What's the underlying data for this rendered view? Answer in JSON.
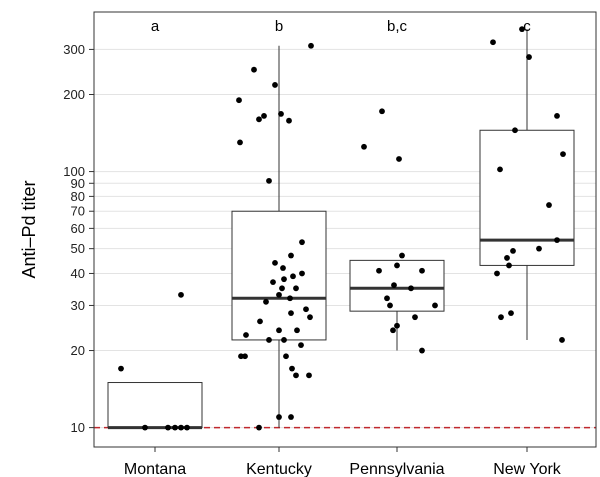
{
  "chart_data": {
    "type": "boxplot",
    "ylabel": "Anti–Pd titer",
    "yscale": "log",
    "ylim": [
      8.4,
      420
    ],
    "yticks": [
      10,
      20,
      30,
      40,
      50,
      60,
      70,
      80,
      90,
      100,
      200,
      300
    ],
    "ytick_labels": [
      "10",
      "20",
      "30",
      "40",
      "50",
      "60",
      "70",
      "80",
      "90",
      "100",
      "200",
      "300"
    ],
    "grid": true,
    "reference_line": {
      "y": 10,
      "color": "#c0272d",
      "style": "dashed"
    },
    "categories": [
      "Montana",
      "Kentucky",
      "Pennsylvania",
      "New York"
    ],
    "significance_labels": [
      "a",
      "b",
      "b,c",
      "c"
    ],
    "boxes": [
      {
        "category": "Montana",
        "whisker_low": 10,
        "q1": 10,
        "median": 10,
        "q3": 15,
        "whisker_high": 15,
        "points": [
          [
            -0.34,
            17
          ],
          [
            0.26,
            33
          ],
          [
            -0.1,
            10
          ],
          [
            0.13,
            10
          ],
          [
            0.2,
            10
          ],
          [
            0.32,
            10
          ],
          [
            0.26,
            10
          ]
        ]
      },
      {
        "category": "Kentucky",
        "whisker_low": 10,
        "q1": 22,
        "median": 32,
        "q3": 70,
        "whisker_high": 310,
        "points": [
          [
            -0.4,
            190
          ],
          [
            -0.25,
            250
          ],
          [
            -0.2,
            160
          ],
          [
            -0.15,
            165
          ],
          [
            -0.04,
            218
          ],
          [
            0.02,
            168
          ],
          [
            0.1,
            158
          ],
          [
            0.32,
            310
          ],
          [
            -0.39,
            130
          ],
          [
            -0.1,
            92
          ],
          [
            0.23,
            53
          ],
          [
            0.12,
            47
          ],
          [
            -0.04,
            44
          ],
          [
            0.04,
            42
          ],
          [
            0.23,
            40
          ],
          [
            0.14,
            39
          ],
          [
            0.05,
            38
          ],
          [
            -0.06,
            37
          ],
          [
            0.03,
            35
          ],
          [
            0.17,
            35
          ],
          [
            0.0,
            33
          ],
          [
            0.11,
            32
          ],
          [
            -0.13,
            31
          ],
          [
            0.27,
            29
          ],
          [
            0.12,
            28
          ],
          [
            0.31,
            27
          ],
          [
            -0.19,
            26
          ],
          [
            0.18,
            24
          ],
          [
            0.0,
            24
          ],
          [
            -0.33,
            23
          ],
          [
            -0.1,
            22
          ],
          [
            0.05,
            22
          ],
          [
            0.22,
            21
          ],
          [
            -0.38,
            19
          ],
          [
            -0.34,
            19
          ],
          [
            0.07,
            19
          ],
          [
            0.13,
            17
          ],
          [
            0.17,
            16
          ],
          [
            0.3,
            16
          ],
          [
            0.0,
            11
          ],
          [
            0.12,
            11
          ],
          [
            -0.2,
            10
          ]
        ]
      },
      {
        "category": "Pennsylvania",
        "whisker_low": 20,
        "q1": 28.5,
        "median": 35,
        "q3": 45,
        "whisker_high": 45,
        "points": [
          [
            -0.15,
            172
          ],
          [
            -0.33,
            125
          ],
          [
            0.02,
            112
          ],
          [
            0.05,
            47
          ],
          [
            0.0,
            43
          ],
          [
            -0.18,
            41
          ],
          [
            0.25,
            41
          ],
          [
            -0.03,
            36
          ],
          [
            0.14,
            35
          ],
          [
            -0.1,
            32
          ],
          [
            -0.07,
            30
          ],
          [
            0.38,
            30
          ],
          [
            0.18,
            27
          ],
          [
            0.0,
            25
          ],
          [
            -0.04,
            24
          ],
          [
            0.25,
            20
          ]
        ]
      },
      {
        "category": "New York",
        "whisker_low": 22,
        "q1": 43,
        "median": 54,
        "q3": 145,
        "whisker_high": 360,
        "points": [
          [
            -0.05,
            360
          ],
          [
            -0.34,
            320
          ],
          [
            0.02,
            280
          ],
          [
            0.3,
            165
          ],
          [
            -0.12,
            145
          ],
          [
            -0.27,
            102
          ],
          [
            0.36,
            117
          ],
          [
            0.22,
            74
          ],
          [
            0.3,
            54
          ],
          [
            0.12,
            50
          ],
          [
            -0.14,
            49
          ],
          [
            -0.2,
            46
          ],
          [
            -0.18,
            43
          ],
          [
            -0.3,
            40
          ],
          [
            -0.16,
            28
          ],
          [
            -0.26,
            27
          ],
          [
            0.35,
            22
          ]
        ]
      }
    ]
  }
}
